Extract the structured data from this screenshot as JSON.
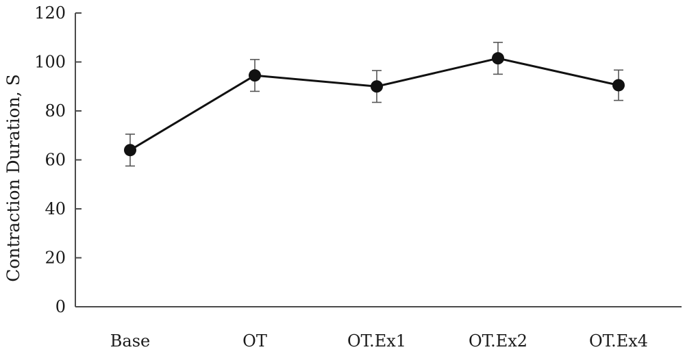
{
  "chart_data": {
    "type": "line",
    "title": "",
    "xlabel": "",
    "ylabel": "Contraction Duration, S",
    "categories": [
      "Base",
      "OT",
      "OT.Ex1",
      "OT.Ex2",
      "OT.Ex4"
    ],
    "series": [
      {
        "values": [
          64,
          94.5,
          90,
          101.5,
          90.5
        ],
        "error": [
          6.5,
          6.5,
          6.5,
          6.5,
          6.2
        ]
      }
    ],
    "ylim": [
      0,
      120
    ],
    "yticks": [
      0,
      20,
      40,
      60,
      80,
      100,
      120
    ],
    "grid": false,
    "legend": "none",
    "colors": {
      "line": "#111111",
      "error_bar": "#555555",
      "axis": "#4a4a4a"
    }
  }
}
